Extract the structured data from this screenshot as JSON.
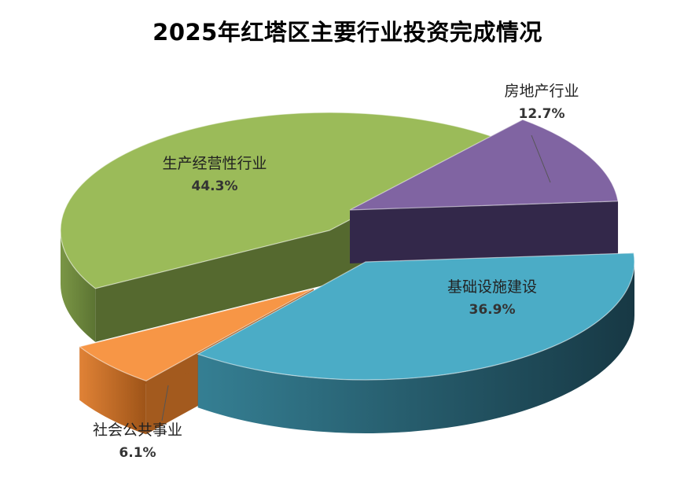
{
  "chart_data": {
    "type": "pie",
    "title": "2025年红塔区主要行业投资完成情况",
    "slices": [
      {
        "label": "房地产行业",
        "value": 12.7,
        "value_label": "12.7%",
        "color": "#8064A2"
      },
      {
        "label": "基础设施建设",
        "value": 36.9,
        "value_label": "36.9%",
        "color": "#4BACC6"
      },
      {
        "label": "社会公共事业",
        "value": 6.1,
        "value_label": "6.1%",
        "color": "#F79646"
      },
      {
        "label": "生产经营性行业",
        "value": 44.3,
        "value_label": "44.3%",
        "color": "#9BBB59"
      }
    ],
    "style": "3d-exploded",
    "legend": "none"
  }
}
